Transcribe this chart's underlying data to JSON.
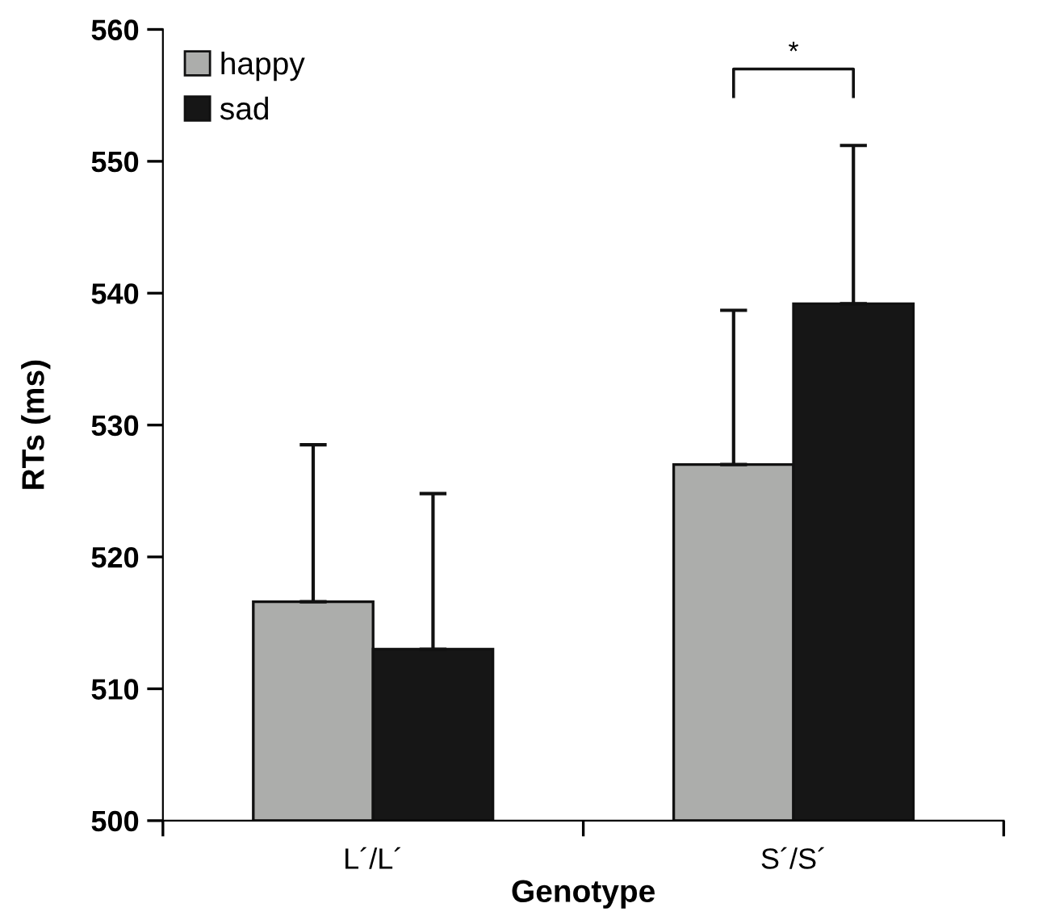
{
  "chart_data": {
    "type": "bar",
    "xlabel": "Genotype",
    "ylabel": "RTs (ms)",
    "categories": [
      "L´/L´",
      "S´/S´"
    ],
    "series": [
      {
        "name": "happy",
        "color": "#acadab",
        "values": [
          516.6,
          527.0
        ],
        "errors": [
          [
            516.6,
            528.5
          ],
          [
            527.0,
            538.7
          ]
        ]
      },
      {
        "name": "sad",
        "color": "#161616",
        "values": [
          513.0,
          539.2
        ],
        "errors": [
          [
            513.0,
            524.8
          ],
          [
            539.2,
            551.2
          ]
        ]
      }
    ],
    "ylim": [
      500,
      560
    ],
    "yticks": [
      500,
      510,
      520,
      530,
      540,
      550,
      560
    ],
    "grid": false,
    "legend": "top left",
    "annotations": [
      "*"
    ]
  }
}
